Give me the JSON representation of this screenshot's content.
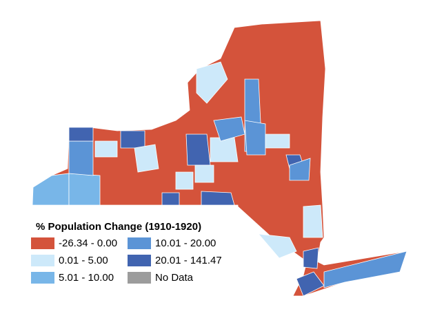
{
  "legend": {
    "title": "% Population Change (1910-1920)",
    "items": [
      {
        "label": "-26.34 - 0.00",
        "color": "#d4533b"
      },
      {
        "label": "0.01 - 5.00",
        "color": "#cde9fa"
      },
      {
        "label": "5.01 - 10.00",
        "color": "#78b6e8"
      },
      {
        "label": "10.01 - 20.00",
        "color": "#5b94d6"
      },
      {
        "label": "20.01 - 141.47",
        "color": "#4164b0"
      },
      {
        "label": "No Data",
        "color": "#9c9c9c"
      }
    ]
  }
}
